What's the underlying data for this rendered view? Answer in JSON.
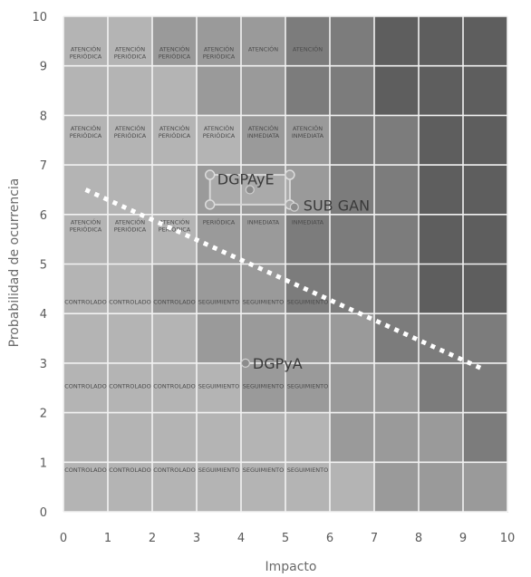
{
  "chart_data": {
    "type": "scatter",
    "xlabel": "Impacto",
    "ylabel": "Probabilidad de ocurrencia",
    "xlim": [
      0,
      10
    ],
    "ylim": [
      0,
      10
    ],
    "xticks": [
      "0",
      "1",
      "2",
      "3",
      "4",
      "5",
      "6",
      "7",
      "8",
      "9",
      "10"
    ],
    "yticks": [
      "0",
      "1",
      "2",
      "3",
      "4",
      "5",
      "6",
      "7",
      "8",
      "9",
      "10"
    ],
    "grid": true,
    "zones": [
      {
        "level": 0,
        "color": "#b4b4b4"
      },
      {
        "level": 1,
        "color": "#9a9a9a"
      },
      {
        "level": 2,
        "color": "#7c7c7c"
      },
      {
        "level": 3,
        "color": "#5e5e5e"
      }
    ],
    "zone_grid": [
      [
        0,
        0,
        1,
        1,
        1,
        2,
        2,
        3,
        3,
        3
      ],
      [
        0,
        0,
        0,
        1,
        1,
        2,
        2,
        3,
        3,
        3
      ],
      [
        0,
        0,
        0,
        0,
        1,
        1,
        2,
        2,
        3,
        3
      ],
      [
        0,
        0,
        0,
        1,
        1,
        1,
        2,
        2,
        3,
        3
      ],
      [
        0,
        0,
        0,
        1,
        1,
        2,
        2,
        2,
        3,
        3
      ],
      [
        0,
        0,
        1,
        1,
        1,
        2,
        2,
        2,
        3,
        3
      ],
      [
        0,
        0,
        0,
        1,
        1,
        1,
        1,
        2,
        2,
        2
      ],
      [
        0,
        0,
        0,
        0,
        1,
        1,
        1,
        1,
        2,
        2
      ],
      [
        0,
        0,
        0,
        0,
        0,
        0,
        1,
        1,
        1,
        2
      ],
      [
        0,
        0,
        0,
        0,
        0,
        0,
        0,
        1,
        1,
        1
      ]
    ],
    "cell_labels": [
      {
        "x": 0.5,
        "y": 9.3,
        "lines": [
          "ATENCIÓN",
          "PERIÓDICA"
        ]
      },
      {
        "x": 1.5,
        "y": 9.3,
        "lines": [
          "ATENCIÓN",
          "PERIÓDICA"
        ]
      },
      {
        "x": 2.5,
        "y": 9.3,
        "lines": [
          "ATENCIÓN",
          "PERIÓDICA"
        ]
      },
      {
        "x": 3.5,
        "y": 9.3,
        "lines": [
          "ATENCIÓN",
          "PERIÓDICA"
        ]
      },
      {
        "x": 4.5,
        "y": 9.3,
        "lines": [
          "ATENCIÓN"
        ]
      },
      {
        "x": 5.5,
        "y": 9.3,
        "lines": [
          "ATENCIÓN"
        ]
      },
      {
        "x": 0.5,
        "y": 7.7,
        "lines": [
          "ATENCIÓN",
          "PERIÓDICA"
        ]
      },
      {
        "x": 1.5,
        "y": 7.7,
        "lines": [
          "ATENCIÓN",
          "PERIÓDICA"
        ]
      },
      {
        "x": 2.5,
        "y": 7.7,
        "lines": [
          "ATENCIÓN",
          "PERIÓDICA"
        ]
      },
      {
        "x": 3.5,
        "y": 7.7,
        "lines": [
          "ATENCIÓN",
          "PERIÓDICA"
        ]
      },
      {
        "x": 4.5,
        "y": 7.7,
        "lines": [
          "ATENCIÓN",
          "INMEDIATA"
        ]
      },
      {
        "x": 5.5,
        "y": 7.7,
        "lines": [
          "ATENCIÓN",
          "INMEDIATA"
        ]
      },
      {
        "x": 0.5,
        "y": 5.8,
        "lines": [
          "ATENCIÓN",
          "PERIÓDICA"
        ]
      },
      {
        "x": 1.5,
        "y": 5.8,
        "lines": [
          "ATENCIÓN",
          "PERIÓDICA"
        ]
      },
      {
        "x": 2.5,
        "y": 5.8,
        "lines": [
          "ATENCIÓN",
          "PERIÓDICA"
        ]
      },
      {
        "x": 3.5,
        "y": 5.8,
        "lines": [
          "PERIÓDICA"
        ]
      },
      {
        "x": 4.5,
        "y": 5.8,
        "lines": [
          "INMEDIATA"
        ]
      },
      {
        "x": 5.5,
        "y": 5.8,
        "lines": [
          "INMEDIATA"
        ]
      },
      {
        "x": 0.5,
        "y": 4.2,
        "lines": [
          "CONTROLADO"
        ]
      },
      {
        "x": 1.5,
        "y": 4.2,
        "lines": [
          "CONTROLADO"
        ]
      },
      {
        "x": 2.5,
        "y": 4.2,
        "lines": [
          "CONTROLADO"
        ]
      },
      {
        "x": 3.5,
        "y": 4.2,
        "lines": [
          "SEGUIMIENTO"
        ]
      },
      {
        "x": 4.5,
        "y": 4.2,
        "lines": [
          "SEGUIMIENTO"
        ]
      },
      {
        "x": 5.5,
        "y": 4.2,
        "lines": [
          "SEGUIMIENTO"
        ]
      },
      {
        "x": 0.5,
        "y": 2.5,
        "lines": [
          "CONTROLADO"
        ]
      },
      {
        "x": 1.5,
        "y": 2.5,
        "lines": [
          "CONTROLADO"
        ]
      },
      {
        "x": 2.5,
        "y": 2.5,
        "lines": [
          "CONTROLADO"
        ]
      },
      {
        "x": 3.5,
        "y": 2.5,
        "lines": [
          "SEGUIMIENTO"
        ]
      },
      {
        "x": 4.5,
        "y": 2.5,
        "lines": [
          "SEGUIMIENTO"
        ]
      },
      {
        "x": 5.5,
        "y": 2.5,
        "lines": [
          "SEGUIMIENTO"
        ]
      },
      {
        "x": 0.5,
        "y": 0.8,
        "lines": [
          "CONTROLADO"
        ]
      },
      {
        "x": 1.5,
        "y": 0.8,
        "lines": [
          "CONTROLADO"
        ]
      },
      {
        "x": 2.5,
        "y": 0.8,
        "lines": [
          "CONTROLADO"
        ]
      },
      {
        "x": 3.5,
        "y": 0.8,
        "lines": [
          "SEGUIMIENTO"
        ]
      },
      {
        "x": 4.5,
        "y": 0.8,
        "lines": [
          "SEGUIMIENTO"
        ]
      },
      {
        "x": 5.5,
        "y": 0.8,
        "lines": [
          "SEGUIMIENTO"
        ]
      }
    ],
    "series": [
      {
        "points": [
          {
            "x": 3.3,
            "y": 6.8
          },
          {
            "x": 5.1,
            "y": 6.8
          },
          {
            "x": 5.1,
            "y": 6.2
          },
          {
            "x": 3.3,
            "y": 6.2
          }
        ]
      },
      {
        "points": [
          {
            "x": 4.1,
            "y": 3.0,
            "label": "DGPyA"
          },
          {
            "x": 4.2,
            "y": 6.5,
            "label": "DGPAyE"
          },
          {
            "x": 5.2,
            "y": 6.15,
            "label": "SUB GAN"
          }
        ]
      }
    ],
    "threshold_line": {
      "style": "dotted",
      "color": "#ffffff",
      "points": [
        [
          0.5,
          6.5
        ],
        [
          9.4,
          2.9
        ]
      ]
    }
  }
}
